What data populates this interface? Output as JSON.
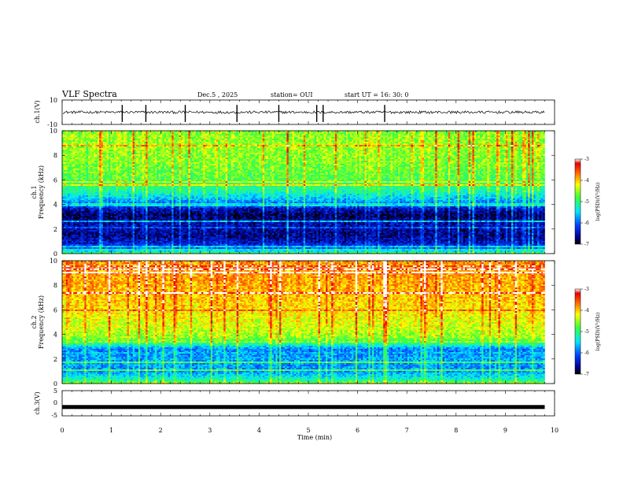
{
  "header": {
    "title": "VLF Spectra",
    "date": "Dec.5  , 2025",
    "station": "station= OUI",
    "start": "start  UT =   16: 30: 0"
  },
  "chart_data": [
    {
      "type": "line",
      "name": "ch1-waveform",
      "ylabel": "ch.1(V)",
      "ylim": [
        -10,
        10
      ],
      "yticks": [
        "10",
        "-10"
      ],
      "baseline": 0,
      "spikes_min": [
        1.22,
        1.7,
        2.5,
        3.55,
        4.4,
        5.17,
        5.3,
        6.55
      ]
    },
    {
      "type": "heatmap",
      "name": "ch1-spectrogram",
      "ylabel": "ch.1",
      "ylabel2": "Frequency (kHz)",
      "ylim": [
        0,
        10
      ],
      "yticks": [
        "0",
        "2",
        "4",
        "6",
        "8",
        "10"
      ],
      "xlim_min": [
        0,
        10
      ],
      "data_end_min": 9.8,
      "colorbar": {
        "label": "log(PSD)(V²/Hz)",
        "ticks": [
          "-3",
          "-4",
          "-5",
          "-6",
          "-7"
        ],
        "range": [
          -7,
          -3
        ]
      },
      "band_profile": [
        [
          0.0,
          0.55
        ],
        [
          0.3,
          0.3
        ],
        [
          0.8,
          0.15
        ],
        [
          1.5,
          0.08
        ],
        [
          2.2,
          0.12
        ],
        [
          2.6,
          0.1
        ],
        [
          3.1,
          0.05
        ],
        [
          3.6,
          0.12
        ],
        [
          4.2,
          0.3
        ],
        [
          5.0,
          0.45
        ],
        [
          6.0,
          0.55
        ],
        [
          7.5,
          0.6
        ],
        [
          9.0,
          0.62
        ],
        [
          10.0,
          0.6
        ]
      ]
    },
    {
      "type": "heatmap",
      "name": "ch2-spectrogram",
      "ylabel": "ch.2",
      "ylabel2": "Frequency (kHz)",
      "ylim": [
        0,
        10
      ],
      "yticks": [
        "0",
        "2",
        "4",
        "6",
        "8",
        "10"
      ],
      "xlim_min": [
        0,
        10
      ],
      "data_end_min": 9.8,
      "colorbar": {
        "label": "log(PSD)(V²/Hz)",
        "ticks": [
          "-3",
          "-4",
          "-5",
          "-6",
          "-7"
        ],
        "range": [
          -7,
          -3
        ]
      },
      "band_profile": [
        [
          0.0,
          0.62
        ],
        [
          0.3,
          0.45
        ],
        [
          1.0,
          0.3
        ],
        [
          2.0,
          0.32
        ],
        [
          2.8,
          0.28
        ],
        [
          3.3,
          0.5
        ],
        [
          3.8,
          0.62
        ],
        [
          4.5,
          0.66
        ],
        [
          6.0,
          0.72
        ],
        [
          8.0,
          0.78
        ],
        [
          10.0,
          0.8
        ]
      ]
    },
    {
      "type": "line",
      "name": "ch3-waveform",
      "ylabel": "ch.3(V)",
      "ylim": [
        -5,
        5
      ],
      "yticks": [
        "5",
        "0",
        "-5"
      ],
      "level": -1.5
    }
  ],
  "xaxis": {
    "label": "Time (min)",
    "ticks": [
      "0",
      "1",
      "2",
      "3",
      "4",
      "5",
      "6",
      "7",
      "8",
      "9",
      "10"
    ],
    "range": [
      0,
      10
    ]
  }
}
